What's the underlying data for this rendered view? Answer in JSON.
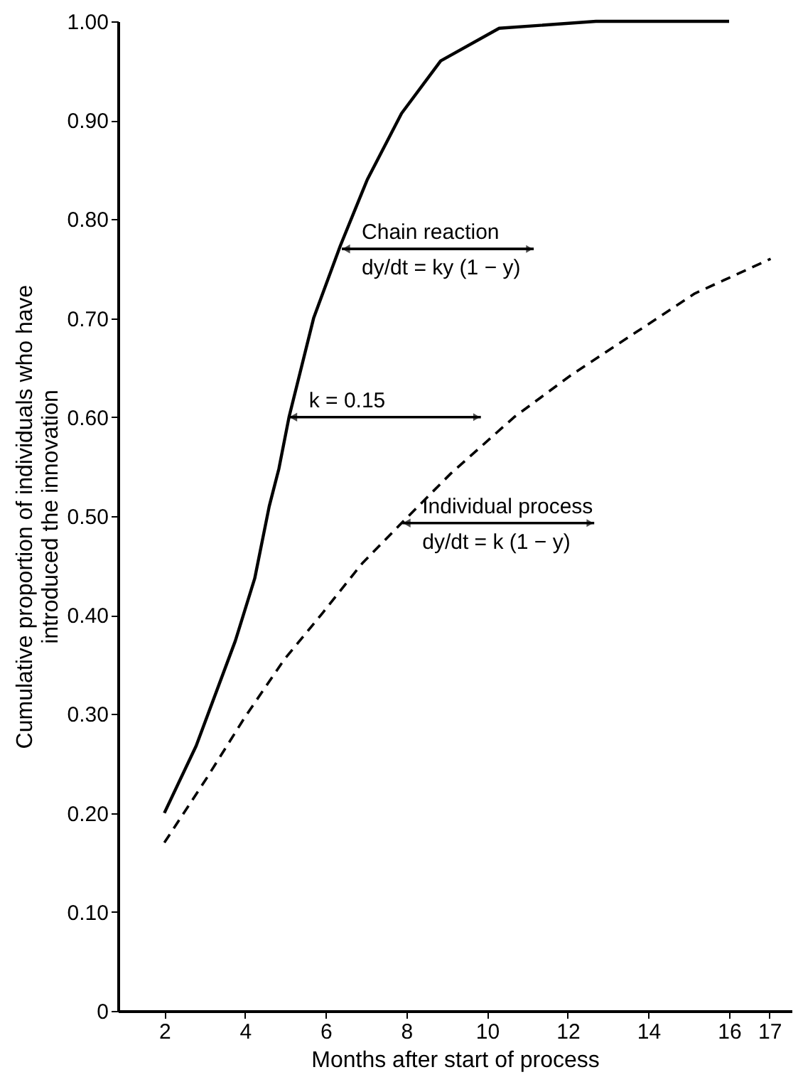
{
  "chart_data": {
    "type": "line",
    "xlabel": "Months after start of process",
    "ylabel": "Cumulative proportion of individuals who have\nintroduced the innovation",
    "xlim": [
      0.85,
      17.55
    ],
    "xticks": [
      2,
      4,
      6,
      8,
      10,
      12,
      14,
      16,
      17
    ],
    "ylim": [
      0,
      1.0
    ],
    "yticks": [
      0,
      {
        "value": 0.1,
        "label": "0.10"
      },
      {
        "value": 0.2,
        "label": "0.20"
      },
      {
        "value": 0.3,
        "label": "0.30"
      },
      {
        "value": 0.4,
        "label": "0.40"
      },
      {
        "value": 0.5,
        "label": "0.50"
      },
      {
        "value": 0.6,
        "label": "0.60"
      },
      {
        "value": 0.7,
        "label": "0.70"
      },
      {
        "value": 0.8,
        "label": "0.80"
      },
      {
        "value": 0.9,
        "label": "0.90"
      },
      {
        "value": 1.0,
        "label": "1.00"
      }
    ],
    "grid": false,
    "marker": "none",
    "series": [
      {
        "color": "#000000",
        "line_style": "solid",
        "x": [
          2,
          2.79,
          3.76,
          4.24,
          4.6,
          4.84,
          5.09,
          5.7,
          6.36,
          7.03,
          7.88,
          8.85,
          10.3,
          12.7,
          16
        ],
        "values": [
          0.2,
          0.268,
          0.374,
          0.437,
          0.51,
          0.548,
          0.6,
          0.7,
          0.773,
          0.84,
          0.907,
          0.96,
          0.993,
          1.0,
          1.0
        ]
      },
      {
        "color": "#000000",
        "line_style": "dashed",
        "x": [
          2,
          3.03,
          4,
          4.97,
          5.94,
          6.9,
          7.88,
          9.1,
          10.67,
          12.1,
          13.7,
          15.15,
          17.03
        ],
        "values": [
          0.17,
          0.234,
          0.297,
          0.355,
          0.403,
          0.452,
          0.493,
          0.543,
          0.6,
          0.643,
          0.686,
          0.725,
          0.76
        ]
      }
    ],
    "annotations": [
      {
        "text": "Chain reaction",
        "x": 6.4,
        "y": 0.77
      },
      {
        "text": "dy/dt = ky (1 − y)",
        "x": 6.4,
        "y": 0.77
      },
      {
        "text": "k = 0.15",
        "x": 5.09,
        "y": 0.6
      },
      {
        "text": "Individual process",
        "x": 7.9,
        "y": 0.493
      },
      {
        "text": "dy/dt = k (1 − y)",
        "x": 7.9,
        "y": 0.493
      }
    ]
  }
}
